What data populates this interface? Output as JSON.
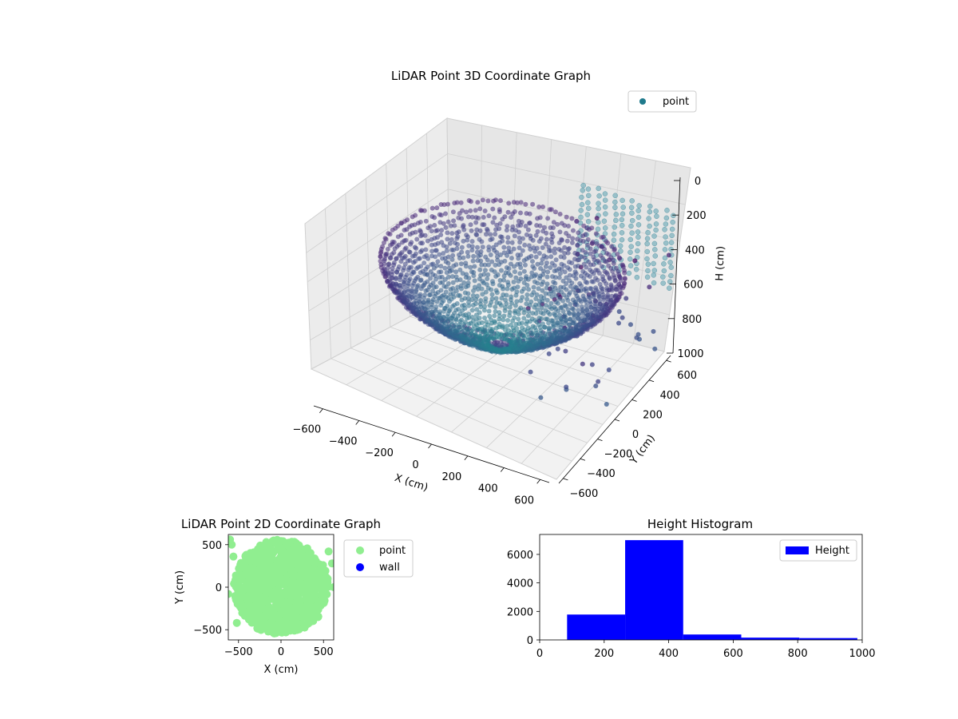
{
  "figure": {
    "background": "#ffffff"
  },
  "chart_data": [
    {
      "type": "scatter",
      "projection": "3d",
      "title": "LiDAR Point 3D Coordinate Graph",
      "xlabel": "X (cm)",
      "ylabel": "Y (cm)",
      "zlabel": "H (cm)",
      "xlim": [
        -650,
        650
      ],
      "ylim": [
        -650,
        650
      ],
      "zlim": [
        1000,
        0
      ],
      "z_inverted": true,
      "x_ticks": [
        "−600",
        "−400",
        "−200",
        "0",
        "200",
        "400",
        "600"
      ],
      "y_ticks": [
        "−600",
        "−400",
        "−200",
        "0",
        "200",
        "400",
        "600"
      ],
      "z_ticks": [
        "0",
        "200",
        "400",
        "600",
        "800",
        "1000"
      ],
      "colormap": "viridis (height-mapped, dark purple to teal)",
      "legend": {
        "entries": [
          "point"
        ],
        "placement": "top-right",
        "marker_color": "#1f7a8c"
      },
      "series": [
        {
          "name": "point",
          "shape": "dense bowl-shaped cloud (radius ~550 cm, heights ~100–600 cm) plus sparse vertical columns of points at the back walls (heights ~0–450 cm) and scattered points down to ~800 cm",
          "bowl_height_range": [
            150,
            600
          ],
          "rim_radius": 600
        }
      ],
      "grid": true
    },
    {
      "type": "scatter",
      "title": "LiDAR Point 2D Coordinate Graph",
      "xlabel": "X (cm)",
      "ylabel": "Y (cm)",
      "xlim": [
        -620,
        620
      ],
      "ylim": [
        -620,
        620
      ],
      "x_ticks": [
        "−500",
        "0",
        "500"
      ],
      "y_ticks": [
        "−500",
        "0",
        "500"
      ],
      "legend": {
        "placement": "outside-right"
      },
      "series": [
        {
          "name": "point",
          "color": "#90ee90",
          "shape": "dense disk, x ≈ −600..600, y ≈ −600..600"
        },
        {
          "name": "wall",
          "color": "#0000ff",
          "points": []
        }
      ]
    },
    {
      "type": "bar",
      "subtype": "histogram",
      "title": "Height Histogram",
      "xlim": [
        0,
        1000
      ],
      "ylim": [
        0,
        7400
      ],
      "x_ticks": [
        "0",
        "200",
        "400",
        "600",
        "800",
        "1000"
      ],
      "y_ticks": [
        "0",
        "2000",
        "4000",
        "6000"
      ],
      "color": "#0000ff",
      "legend": {
        "entries": [
          "Height"
        ],
        "placement": "top-right"
      },
      "bins": [
        {
          "x0": 85,
          "x1": 265,
          "count": 1780
        },
        {
          "x0": 265,
          "x1": 445,
          "count": 7000
        },
        {
          "x0": 445,
          "x1": 625,
          "count": 380
        },
        {
          "x0": 625,
          "x1": 805,
          "count": 160
        },
        {
          "x0": 805,
          "x1": 985,
          "count": 130
        }
      ]
    }
  ]
}
